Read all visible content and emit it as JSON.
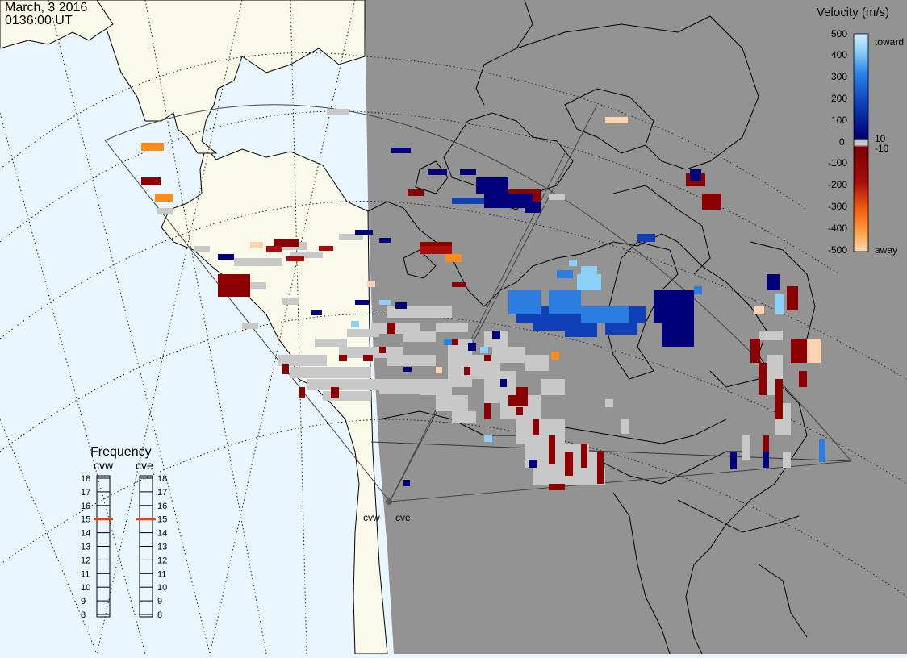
{
  "header": {
    "date": "March, 3 2016",
    "time": "0136:00 UT"
  },
  "colors": {
    "ocean": "#eaf6ff",
    "land_day": "#fafaea",
    "night": "#939393",
    "ground_scatter": "#c8c8c8"
  },
  "colorbar": {
    "title": "Velocity (m/s)",
    "ticks": [
      "500",
      "400",
      "300",
      "200",
      "100",
      "10",
      "0",
      "-10",
      "-100",
      "-200",
      "-300",
      "-400",
      "-500"
    ],
    "label_toward": "toward",
    "label_away": "away",
    "gradient": [
      "#ffd8b4",
      "#ff9a3c",
      "#f05a14",
      "#a80d0d",
      "#7a0000",
      "#000070",
      "#1040b8",
      "#2b83e8",
      "#8ccff8",
      "#d2ecff"
    ]
  },
  "radars": {
    "west": "cvw",
    "east": "cve"
  },
  "frequency": {
    "title": "Frequency",
    "radar_west": "cvw",
    "radar_east": "cve",
    "scale": [
      "18",
      "17",
      "16",
      "15",
      "14",
      "13",
      "12",
      "11",
      "10",
      "9",
      "8"
    ],
    "selected_mhz_west": 15,
    "selected_mhz_east": 15,
    "marker_color": "#e0421c"
  }
}
